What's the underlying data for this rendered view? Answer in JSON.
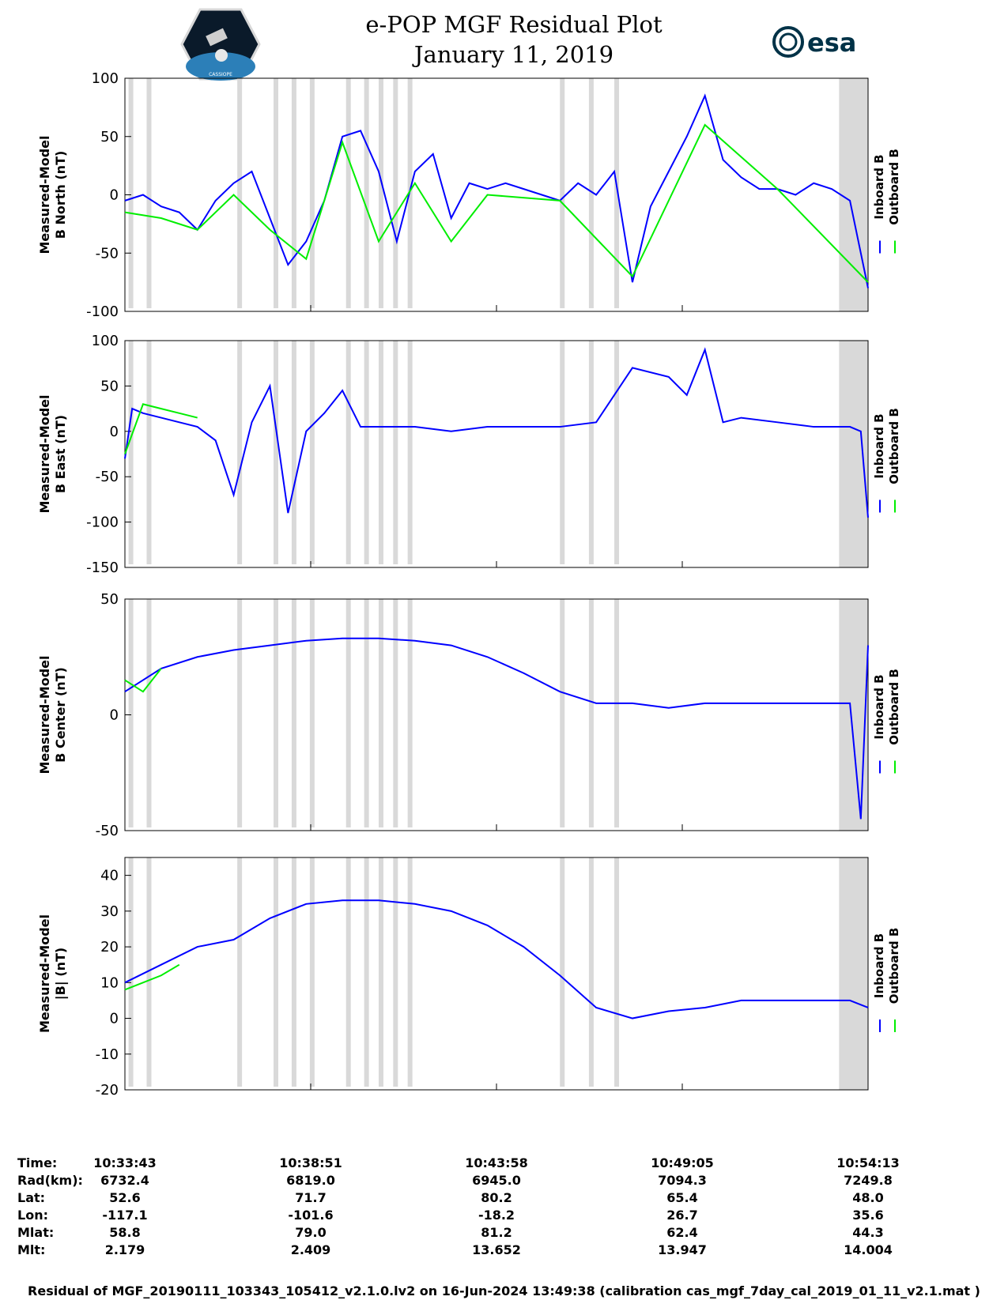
{
  "title": {
    "line1": "e-POP MGF Residual Plot",
    "line2": "January 11, 2019"
  },
  "logos": {
    "left_text": "CASSIOPE",
    "right_text": "esa"
  },
  "colors": {
    "inboard": "#0000ff",
    "outboard": "#00ee00",
    "shade": "#d9d9d9"
  },
  "chart_data": [
    {
      "type": "line",
      "ylabel": [
        "Measured-Model",
        "B North (nT)"
      ],
      "ylim": [
        -100,
        100
      ],
      "yticks": [
        100,
        50,
        0,
        -50,
        -100
      ],
      "legend": [
        "Inboard B",
        "Outboard B"
      ],
      "series": [
        {
          "name": "Inboard B",
          "color": "#0000ff",
          "x": [
            0,
            0.5,
            1,
            1.5,
            2,
            2.5,
            3,
            3.5,
            4,
            4.5,
            5,
            5.5,
            6,
            6.5,
            7,
            7.5,
            8,
            8.5,
            9,
            9.5,
            10,
            10.5,
            11,
            11.5,
            12,
            12.5,
            13,
            13.5,
            14,
            14.5,
            15,
            15.5,
            16,
            16.5,
            17,
            17.5,
            18,
            18.5,
            19,
            19.5,
            20,
            20.5
          ],
          "y": [
            -5,
            0,
            -10,
            -15,
            -30,
            -5,
            10,
            20,
            -20,
            -60,
            -40,
            -5,
            50,
            55,
            20,
            -40,
            20,
            35,
            -20,
            10,
            5,
            10,
            5,
            0,
            -5,
            10,
            0,
            20,
            -75,
            -10,
            20,
            50,
            85,
            30,
            15,
            5,
            5,
            0,
            10,
            5,
            -5,
            -80
          ]
        },
        {
          "name": "Outboard B",
          "color": "#00ee00",
          "x": [
            0,
            1,
            2,
            3,
            4,
            5,
            6,
            7,
            8,
            9,
            10,
            12,
            14,
            16,
            18,
            20.5
          ],
          "y": [
            -15,
            -20,
            -30,
            0,
            -30,
            -55,
            45,
            -40,
            10,
            -40,
            0,
            -5,
            -70,
            60,
            5,
            -75
          ]
        }
      ]
    },
    {
      "type": "line",
      "ylabel": [
        "Measured-Model",
        "B East (nT)"
      ],
      "ylim": [
        -150,
        100
      ],
      "yticks": [
        100,
        50,
        0,
        -50,
        -100,
        -150
      ],
      "legend": [
        "Inboard B",
        "Outboard B"
      ],
      "series": [
        {
          "name": "Inboard B",
          "color": "#0000ff",
          "x": [
            0,
            0.2,
            0.5,
            1,
            1.5,
            2,
            2.5,
            3,
            3.5,
            4,
            4.5,
            5,
            5.5,
            6,
            6.5,
            7,
            8,
            9,
            10,
            11,
            12,
            13,
            14,
            15,
            15.5,
            16,
            16.5,
            17,
            18,
            19,
            20,
            20.3,
            20.5
          ],
          "y": [
            -30,
            25,
            20,
            15,
            10,
            5,
            -10,
            -70,
            10,
            50,
            -90,
            0,
            20,
            45,
            5,
            5,
            5,
            0,
            5,
            5,
            5,
            10,
            70,
            60,
            40,
            90,
            10,
            15,
            10,
            5,
            5,
            0,
            -95
          ]
        },
        {
          "name": "Outboard B",
          "color": "#00ee00",
          "x": [
            0,
            0.5,
            1,
            1.5,
            2
          ],
          "y": [
            -25,
            30,
            25,
            20,
            15
          ]
        }
      ]
    },
    {
      "type": "line",
      "ylabel": [
        "Measured-Model",
        "B Center (nT)"
      ],
      "ylim": [
        -50,
        50
      ],
      "yticks": [
        50,
        0,
        -50
      ],
      "legend": [
        "Inboard B",
        "Outboard B"
      ],
      "series": [
        {
          "name": "Inboard B",
          "color": "#0000ff",
          "x": [
            0,
            1,
            2,
            3,
            4,
            5,
            6,
            7,
            8,
            9,
            10,
            11,
            12,
            13,
            14,
            15,
            16,
            17,
            18,
            19,
            20,
            20.3,
            20.5
          ],
          "y": [
            10,
            20,
            25,
            28,
            30,
            32,
            33,
            33,
            32,
            30,
            25,
            18,
            10,
            5,
            5,
            3,
            5,
            5,
            5,
            5,
            5,
            -45,
            30
          ]
        },
        {
          "name": "Outboard B",
          "color": "#00ee00",
          "x": [
            0,
            0.5,
            1
          ],
          "y": [
            15,
            10,
            20
          ]
        }
      ]
    },
    {
      "type": "line",
      "ylabel": [
        "Measured-Model",
        "|B| (nT)"
      ],
      "ylim": [
        -20,
        45
      ],
      "yticks": [
        40,
        30,
        20,
        10,
        0,
        -10,
        -20
      ],
      "legend": [
        "Inboard B",
        "Outboard B"
      ],
      "series": [
        {
          "name": "Inboard B",
          "color": "#0000ff",
          "x": [
            0,
            1,
            2,
            3,
            4,
            5,
            6,
            7,
            8,
            9,
            10,
            11,
            12,
            13,
            14,
            15,
            16,
            17,
            18,
            19,
            20,
            20.5
          ],
          "y": [
            10,
            15,
            20,
            22,
            28,
            32,
            33,
            33,
            32,
            30,
            26,
            20,
            12,
            3,
            0,
            2,
            3,
            5,
            5,
            5,
            5,
            3
          ]
        },
        {
          "name": "Outboard B",
          "color": "#00ee00",
          "x": [
            0,
            0.5,
            1,
            1.5
          ],
          "y": [
            8,
            10,
            12,
            15
          ]
        }
      ]
    }
  ],
  "shaded_x": [
    0.1,
    0.6,
    3.1,
    4.1,
    4.6,
    5.1,
    6.1,
    6.6,
    7,
    7.4,
    7.8,
    12,
    12.8,
    13.5
  ],
  "shade_end": [
    19.7,
    20.5
  ],
  "x_range": [
    0,
    20.5
  ],
  "info": {
    "labels": [
      "Time:",
      "Rad(km):",
      "Lat:",
      "Lon:",
      "Mlat:",
      "Mlt:"
    ],
    "columns": [
      [
        "10:33:43",
        "6732.4",
        "52.6",
        "-117.1",
        "58.8",
        "2.179"
      ],
      [
        "10:38:51",
        "6819.0",
        "71.7",
        "-101.6",
        "79.0",
        "2.409"
      ],
      [
        "10:43:58",
        "6945.0",
        "80.2",
        "-18.2",
        "81.2",
        "13.652"
      ],
      [
        "10:49:05",
        "7094.3",
        "65.4",
        "26.7",
        "62.4",
        "13.947"
      ],
      [
        "10:54:13",
        "7249.8",
        "48.0",
        "35.6",
        "44.3",
        "14.004"
      ]
    ]
  },
  "footer": "Residual of MGF_20190111_103343_105412_v2.1.0.lv2 on 16-Jun-2024 13:49:38 (calibration cas_mgf_7day_cal_2019_01_11_v2.1.mat )"
}
